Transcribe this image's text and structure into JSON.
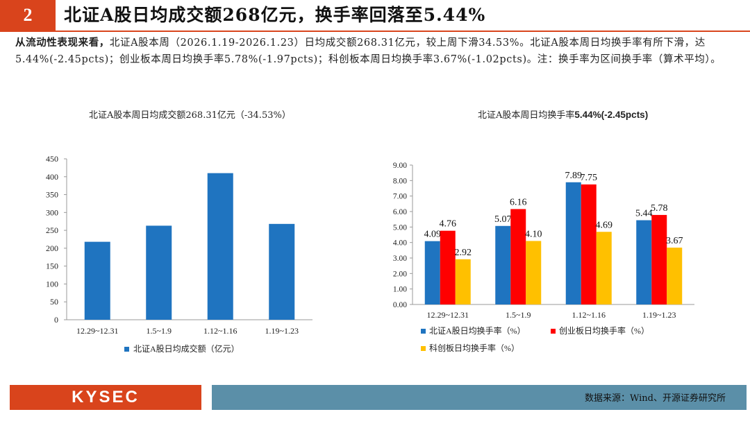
{
  "header": {
    "number": "2",
    "title": "北证A股日均成交额268亿元，换手率回落至5.44%"
  },
  "summary": {
    "lead": "从流动性表现来看，",
    "text": "北证A股本周（2026.1.19-2026.1.23）日均成交额268.31亿元，较上周下滑34.53%。北证A股本周日均换手率有所下滑，达5.44%(-2.45pcts)；创业板本周日均换手率5.78%(-1.97pcts)；科创板本周日均换手率3.67%(-1.02pcts)。注：换手率为区间换手率（算术平均）。"
  },
  "footer": {
    "logo": "KYSEC",
    "source": "数据来源：Wind、开源证券研究所"
  },
  "colors": {
    "brand": "#d9441c",
    "footer_bar": "#5b8fa8",
    "bse": "#1f74c0",
    "chinext": "#ff0000",
    "star": "#ffc000"
  },
  "chart_data": [
    {
      "type": "bar",
      "title": "北证A股本周日均成交额268.31亿元（-34.53%）",
      "categories": [
        "12.29~12.31",
        "1.5~1.9",
        "1.12~1.16",
        "1.19~1.23"
      ],
      "series": [
        {
          "name": "北证A股日均成交额（亿元）",
          "values": [
            218,
            263,
            410,
            268
          ]
        }
      ],
      "ylim": [
        0,
        450
      ],
      "yticks": [
        "0",
        "50",
        "100",
        "150",
        "200",
        "250",
        "300",
        "350",
        "400",
        "450"
      ],
      "legend": "bottom",
      "grid": false
    },
    {
      "type": "bar",
      "title_prefix": "北证A股本周日均换手率",
      "title_suffix": "5.44%(-2.45pcts)",
      "categories": [
        "12.29~12.31",
        "1.5~1.9",
        "1.12~1.16",
        "1.19~1.23"
      ],
      "series": [
        {
          "name": "北证A股日均换手率（%）",
          "values": [
            4.09,
            5.07,
            7.89,
            5.44
          ],
          "labels": [
            "4.09",
            "5.07",
            "7.89",
            "5.44"
          ]
        },
        {
          "name": "创业板日均换手率（%）",
          "values": [
            4.76,
            6.16,
            7.75,
            5.78
          ],
          "labels": [
            "4.76",
            "6.16",
            "7.75",
            "5.78"
          ]
        },
        {
          "name": "科创板日均换手率（%）",
          "values": [
            2.92,
            4.1,
            4.69,
            3.67
          ],
          "labels": [
            "2.92",
            "4.10",
            "4.69",
            "3.67"
          ]
        }
      ],
      "ylim": [
        0,
        9
      ],
      "yticks": [
        "0.00",
        "1.00",
        "2.00",
        "3.00",
        "4.00",
        "5.00",
        "6.00",
        "7.00",
        "8.00",
        "9.00"
      ],
      "legend": "bottom",
      "grid": false
    }
  ]
}
